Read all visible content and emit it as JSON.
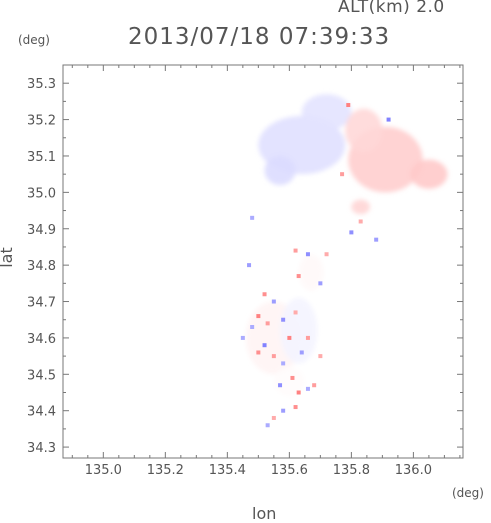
{
  "header": {
    "alt": "ALT(km)  2.0",
    "datetime": "2013/07/18 07:39:33"
  },
  "axes": {
    "x_unit": "(deg)",
    "y_unit": "(deg)",
    "x_label": "lon",
    "y_label": "lat"
  },
  "colors": {
    "positive": "#e87a7a",
    "negative": "#7a7ae8",
    "axis": "#777777"
  },
  "chart_data": {
    "type": "heatmap",
    "xlabel": "lon",
    "ylabel": "lat",
    "xlim": [
      134.87,
      136.16
    ],
    "ylim": [
      34.27,
      35.35
    ],
    "xticks": [
      "135.0",
      "135.2",
      "135.4",
      "135.6",
      "135.8",
      "136.0"
    ],
    "yticks": [
      "34.3",
      "34.4",
      "34.5",
      "34.6",
      "34.7",
      "34.8",
      "34.9",
      "35.0",
      "35.1",
      "35.2",
      "35.3"
    ],
    "blobs": [
      {
        "lon": 135.64,
        "lat": 35.13,
        "rx": 0.14,
        "ry": 0.08,
        "v": -0.22
      },
      {
        "lon": 135.72,
        "lat": 35.22,
        "rx": 0.08,
        "ry": 0.05,
        "v": -0.2
      },
      {
        "lon": 135.57,
        "lat": 35.06,
        "rx": 0.05,
        "ry": 0.04,
        "v": -0.25
      },
      {
        "lon": 135.91,
        "lat": 35.09,
        "rx": 0.12,
        "ry": 0.09,
        "v": 0.35
      },
      {
        "lon": 136.05,
        "lat": 35.05,
        "rx": 0.06,
        "ry": 0.04,
        "v": 0.38
      },
      {
        "lon": 135.84,
        "lat": 35.17,
        "rx": 0.06,
        "ry": 0.06,
        "v": 0.28
      },
      {
        "lon": 135.83,
        "lat": 34.96,
        "rx": 0.03,
        "ry": 0.02,
        "v": 0.3
      },
      {
        "lon": 135.55,
        "lat": 34.6,
        "rx": 0.09,
        "ry": 0.1,
        "v": 0.08
      },
      {
        "lon": 135.63,
        "lat": 34.62,
        "rx": 0.06,
        "ry": 0.09,
        "v": -0.08
      },
      {
        "lon": 135.67,
        "lat": 34.78,
        "rx": 0.04,
        "ry": 0.05,
        "v": 0.05
      },
      {
        "lon": 135.6,
        "lat": 34.48,
        "rx": 0.05,
        "ry": 0.04,
        "v": 0.02
      }
    ],
    "dots": [
      {
        "lon": 135.79,
        "lat": 35.24,
        "v": 0.9
      },
      {
        "lon": 135.77,
        "lat": 35.05,
        "v": 0.7
      },
      {
        "lon": 135.92,
        "lat": 35.2,
        "v": -0.9
      },
      {
        "lon": 135.8,
        "lat": 34.89,
        "v": -0.8
      },
      {
        "lon": 135.83,
        "lat": 34.92,
        "v": 0.6
      },
      {
        "lon": 135.88,
        "lat": 34.87,
        "v": -0.7
      },
      {
        "lon": 135.48,
        "lat": 34.93,
        "v": -0.6
      },
      {
        "lon": 135.47,
        "lat": 34.8,
        "v": -0.7
      },
      {
        "lon": 135.62,
        "lat": 34.84,
        "v": 0.7
      },
      {
        "lon": 135.66,
        "lat": 34.83,
        "v": -0.8
      },
      {
        "lon": 135.63,
        "lat": 34.77,
        "v": 0.8
      },
      {
        "lon": 135.7,
        "lat": 34.75,
        "v": -0.7
      },
      {
        "lon": 135.72,
        "lat": 34.83,
        "v": 0.6
      },
      {
        "lon": 135.52,
        "lat": 34.72,
        "v": 0.8
      },
      {
        "lon": 135.55,
        "lat": 34.7,
        "v": -0.7
      },
      {
        "lon": 135.5,
        "lat": 34.66,
        "v": 0.9
      },
      {
        "lon": 135.48,
        "lat": 34.63,
        "v": -0.6
      },
      {
        "lon": 135.53,
        "lat": 34.64,
        "v": 0.7
      },
      {
        "lon": 135.58,
        "lat": 34.65,
        "v": -0.8
      },
      {
        "lon": 135.6,
        "lat": 34.6,
        "v": 0.9
      },
      {
        "lon": 135.62,
        "lat": 34.67,
        "v": 0.6
      },
      {
        "lon": 135.52,
        "lat": 34.58,
        "v": -0.9
      },
      {
        "lon": 135.55,
        "lat": 34.55,
        "v": 0.7
      },
      {
        "lon": 135.5,
        "lat": 34.56,
        "v": 0.8
      },
      {
        "lon": 135.64,
        "lat": 34.56,
        "v": -0.7
      },
      {
        "lon": 135.58,
        "lat": 34.53,
        "v": -0.6
      },
      {
        "lon": 135.61,
        "lat": 34.49,
        "v": 0.8
      },
      {
        "lon": 135.57,
        "lat": 34.47,
        "v": -0.8
      },
      {
        "lon": 135.63,
        "lat": 34.45,
        "v": 0.9
      },
      {
        "lon": 135.66,
        "lat": 34.46,
        "v": -0.6
      },
      {
        "lon": 135.68,
        "lat": 34.47,
        "v": 0.7
      },
      {
        "lon": 135.62,
        "lat": 34.41,
        "v": 0.8
      },
      {
        "lon": 135.58,
        "lat": 34.4,
        "v": -0.7
      },
      {
        "lon": 135.53,
        "lat": 34.36,
        "v": -0.6
      },
      {
        "lon": 135.55,
        "lat": 34.38,
        "v": 0.6
      },
      {
        "lon": 135.66,
        "lat": 34.6,
        "v": 0.7
      },
      {
        "lon": 135.45,
        "lat": 34.6,
        "v": -0.6
      },
      {
        "lon": 135.7,
        "lat": 34.55,
        "v": 0.6
      }
    ]
  }
}
